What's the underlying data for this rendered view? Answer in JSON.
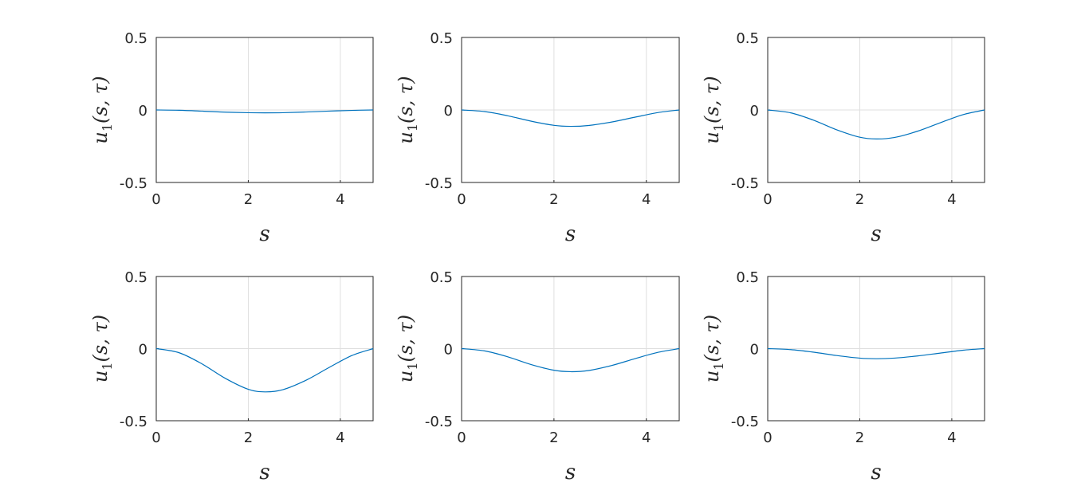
{
  "chart_data": [
    {
      "type": "line",
      "xlabel": "s",
      "ylabel": {
        "base": "u",
        "sub": "1",
        "args": "(s, τ)"
      },
      "xlim": [
        0,
        4.712
      ],
      "ylim": [
        -0.5,
        0.5
      ],
      "xticks": [
        0,
        2,
        4
      ],
      "xtick_labels": [
        "0",
        "2",
        "4"
      ],
      "yticks": [
        0.5,
        0,
        -0.5
      ],
      "ytick_labels": [
        "0.5",
        "0",
        "-0.5"
      ],
      "grid": true,
      "series": [
        {
          "x": [
            0,
            0.5,
            1.0,
            1.5,
            2.0,
            2.36,
            2.75,
            3.25,
            3.75,
            4.25,
            4.712
          ],
          "values": [
            0,
            -0.002,
            -0.008,
            -0.015,
            -0.019,
            -0.02,
            -0.019,
            -0.014,
            -0.008,
            -0.003,
            0
          ]
        }
      ]
    },
    {
      "type": "line",
      "xlabel": "s",
      "ylabel": {
        "base": "u",
        "sub": "1",
        "args": "(s, τ)"
      },
      "xlim": [
        0,
        4.712
      ],
      "ylim": [
        -0.5,
        0.5
      ],
      "xticks": [
        0,
        2,
        4
      ],
      "xtick_labels": [
        "0",
        "2",
        "4"
      ],
      "yticks": [
        0.5,
        0,
        -0.5
      ],
      "ytick_labels": [
        "0.5",
        "0",
        "-0.5"
      ],
      "grid": true,
      "series": [
        {
          "x": [
            0,
            0.5,
            1.0,
            1.5,
            2.0,
            2.36,
            2.75,
            3.25,
            3.75,
            4.25,
            4.712
          ],
          "values": [
            0,
            -0.011,
            -0.04,
            -0.077,
            -0.106,
            -0.113,
            -0.107,
            -0.083,
            -0.05,
            -0.018,
            0
          ]
        }
      ]
    },
    {
      "type": "line",
      "xlabel": "s",
      "ylabel": {
        "base": "u",
        "sub": "1",
        "args": "(s, τ)"
      },
      "xlim": [
        0,
        4.712
      ],
      "ylim": [
        -0.5,
        0.5
      ],
      "xticks": [
        0,
        2,
        4
      ],
      "xtick_labels": [
        "0",
        "2",
        "4"
      ],
      "yticks": [
        0.5,
        0,
        -0.5
      ],
      "ytick_labels": [
        "0.5",
        "0",
        "-0.5"
      ],
      "grid": true,
      "series": [
        {
          "x": [
            0,
            0.5,
            1.0,
            1.5,
            2.0,
            2.36,
            2.75,
            3.25,
            3.75,
            4.25,
            4.712
          ],
          "values": [
            0,
            -0.02,
            -0.071,
            -0.137,
            -0.188,
            -0.2,
            -0.19,
            -0.147,
            -0.088,
            -0.032,
            0
          ]
        }
      ]
    },
    {
      "type": "line",
      "xlabel": "s",
      "ylabel": {
        "base": "u",
        "sub": "1",
        "args": "(s, τ)"
      },
      "xlim": [
        0,
        4.712
      ],
      "ylim": [
        -0.5,
        0.5
      ],
      "xticks": [
        0,
        2,
        4
      ],
      "xtick_labels": [
        "0",
        "2",
        "4"
      ],
      "yticks": [
        0.5,
        0,
        -0.5
      ],
      "ytick_labels": [
        "0.5",
        "0",
        "-0.5"
      ],
      "grid": true,
      "series": [
        {
          "x": [
            0,
            0.5,
            1.0,
            1.5,
            2.0,
            2.36,
            2.75,
            3.25,
            3.75,
            4.25,
            4.712
          ],
          "values": [
            0,
            -0.029,
            -0.107,
            -0.206,
            -0.282,
            -0.3,
            -0.285,
            -0.22,
            -0.132,
            -0.048,
            0
          ]
        }
      ]
    },
    {
      "type": "line",
      "xlabel": "s",
      "ylabel": {
        "base": "u",
        "sub": "1",
        "args": "(s, τ)"
      },
      "xlim": [
        0,
        4.712
      ],
      "ylim": [
        -0.5,
        0.5
      ],
      "xticks": [
        0,
        2,
        4
      ],
      "xtick_labels": [
        "0",
        "2",
        "4"
      ],
      "yticks": [
        0.5,
        0,
        -0.5
      ],
      "ytick_labels": [
        "0.5",
        "0",
        "-0.5"
      ],
      "grid": true,
      "series": [
        {
          "x": [
            0,
            0.5,
            1.0,
            1.5,
            2.0,
            2.36,
            2.75,
            3.25,
            3.75,
            4.25,
            4.712
          ],
          "values": [
            0,
            -0.016,
            -0.057,
            -0.11,
            -0.15,
            -0.16,
            -0.152,
            -0.117,
            -0.07,
            -0.026,
            0
          ]
        }
      ]
    },
    {
      "type": "line",
      "xlabel": "s",
      "ylabel": {
        "base": "u",
        "sub": "1",
        "args": "(s, τ)"
      },
      "xlim": [
        0,
        4.712
      ],
      "ylim": [
        -0.5,
        0.5
      ],
      "xticks": [
        0,
        2,
        4
      ],
      "xtick_labels": [
        "0",
        "2",
        "4"
      ],
      "yticks": [
        0.5,
        0,
        -0.5
      ],
      "ytick_labels": [
        "0.5",
        "0",
        "-0.5"
      ],
      "grid": true,
      "series": [
        {
          "x": [
            0,
            0.5,
            1.0,
            1.5,
            2.0,
            2.36,
            2.75,
            3.25,
            3.75,
            4.25,
            4.712
          ],
          "values": [
            0,
            -0.007,
            -0.025,
            -0.048,
            -0.066,
            -0.07,
            -0.066,
            -0.051,
            -0.031,
            -0.011,
            0
          ]
        }
      ]
    }
  ],
  "colors": {
    "line": "#0072BD",
    "axis": "#262626",
    "grid": "#dfdfdf"
  }
}
